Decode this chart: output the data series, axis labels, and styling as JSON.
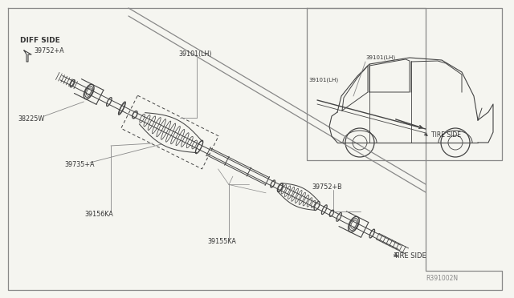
{
  "bg_color": "#f5f5f0",
  "line_color": "#444444",
  "light_line": "#888888",
  "text_color": "#333333",
  "figsize": [
    6.4,
    3.72
  ],
  "dpi": 100,
  "labels": {
    "diff_side": "DIFF SIDE",
    "tire_side_upper": "TIRE SIDE",
    "tire_side_lower": "TIRE SIDE",
    "part_39752A": "39752+A",
    "part_38225W": "38225W",
    "part_39735A": "39735+A",
    "part_39156KA": "39156KA",
    "part_39101LH_1": "39101(LH)",
    "part_39101LH_2": "39101(LH)",
    "part_39752B": "39752+B",
    "part_39155KA": "39155KA",
    "ref_num": "R391002N"
  }
}
